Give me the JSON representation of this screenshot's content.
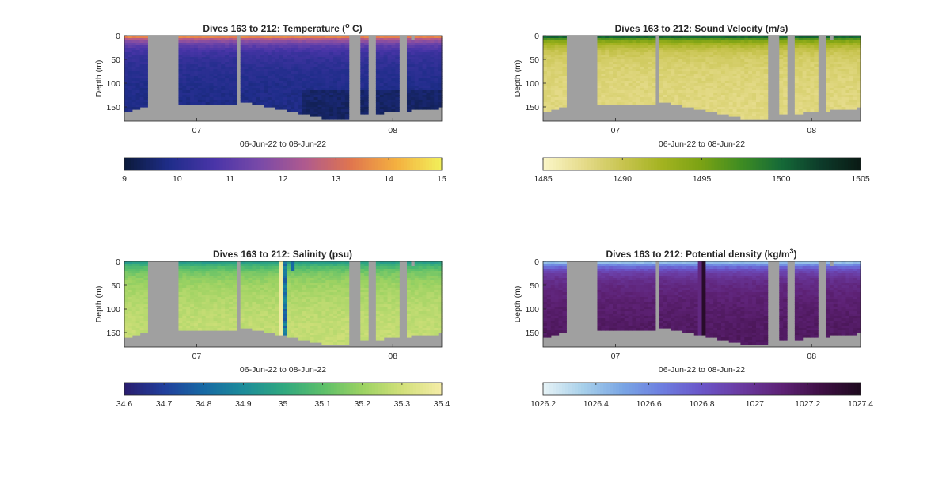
{
  "figure": {
    "background": "#ffffff",
    "mask_color": "#a0a0a0",
    "axis_color": "#262626"
  },
  "chart_data": [
    {
      "type": "heatmap",
      "title_prefix": "Dives 163 to 212: Temperature (",
      "title_sup": "o",
      "title_suffix": " C)",
      "ylabel": "Depth (m)",
      "xlabel": "06-Jun-22 to 08-Jun-22",
      "ylim": [
        0,
        180
      ],
      "y_reversed": true,
      "y_ticks": [
        0,
        50,
        100,
        150
      ],
      "x_ticks": [
        "07",
        "08"
      ],
      "colorbar": {
        "min": 9,
        "max": 15,
        "ticks": [
          "9",
          "10",
          "11",
          "12",
          "13",
          "14",
          "15"
        ],
        "colors": [
          "#0b1a3a",
          "#1f2d8a",
          "#4a35a8",
          "#7a4aa8",
          "#b05a8e",
          "#e0764e",
          "#f4b040",
          "#f2f05a"
        ]
      },
      "grid": false
    },
    {
      "type": "heatmap",
      "title_prefix": "Dives 163 to 212: Sound Velocity (m/s)",
      "title_sup": "",
      "title_suffix": "",
      "ylabel": "Depth (m)",
      "xlabel": "06-Jun-22 to 08-Jun-22",
      "ylim": [
        0,
        180
      ],
      "y_reversed": true,
      "y_ticks": [
        0,
        50,
        100,
        150
      ],
      "x_ticks": [
        "07",
        "08"
      ],
      "colorbar": {
        "min": 1485,
        "max": 1505,
        "ticks": [
          "1485",
          "1490",
          "1495",
          "1500",
          "1505"
        ],
        "colors": [
          "#fbf6c8",
          "#e6dc8c",
          "#c8c450",
          "#a3b320",
          "#7aa214",
          "#3e8c22",
          "#156a38",
          "#0d3b2a",
          "#0a1a14"
        ]
      },
      "grid": false
    },
    {
      "type": "heatmap",
      "title_prefix": "Dives 163 to 212: Salinity (psu)",
      "title_sup": "",
      "title_suffix": "",
      "ylabel": "Depth (m)",
      "xlabel": "06-Jun-22 to 08-Jun-22",
      "ylim": [
        0,
        180
      ],
      "y_reversed": true,
      "y_ticks": [
        0,
        50,
        100,
        150
      ],
      "x_ticks": [
        "07",
        "08"
      ],
      "colorbar": {
        "min": 34.6,
        "max": 35.4,
        "ticks": [
          "34.6",
          "34.7",
          "34.8",
          "34.9",
          "35",
          "35.1",
          "35.2",
          "35.3",
          "35.4"
        ],
        "colors": [
          "#2a1d6e",
          "#213f9c",
          "#1769a4",
          "#1c8c9a",
          "#2fa880",
          "#5cbf6a",
          "#9cd262",
          "#d2e07a",
          "#f5eda8"
        ]
      },
      "grid": false
    },
    {
      "type": "heatmap",
      "title_prefix": "Dives 163 to 212: Potential density (kg/m",
      "title_sup": "3",
      "title_suffix": ")",
      "ylabel": "Depth (m)",
      "xlabel": "06-Jun-22 to 08-Jun-22",
      "ylim": [
        0,
        180
      ],
      "y_reversed": true,
      "y_ticks": [
        0,
        50,
        100,
        150
      ],
      "x_ticks": [
        "07",
        "08"
      ],
      "colorbar": {
        "min": 1026.2,
        "max": 1027.4,
        "ticks": [
          "1026.2",
          "1026.4",
          "1026.6",
          "1026.8",
          "1027",
          "1027.2",
          "1027.4"
        ],
        "colors": [
          "#e6f3f6",
          "#a8d0ea",
          "#7aa6e4",
          "#6d7ee0",
          "#6a55c8",
          "#6a3aa0",
          "#5e2276",
          "#3e0f44",
          "#1e0a1e"
        ]
      },
      "grid": false
    }
  ]
}
